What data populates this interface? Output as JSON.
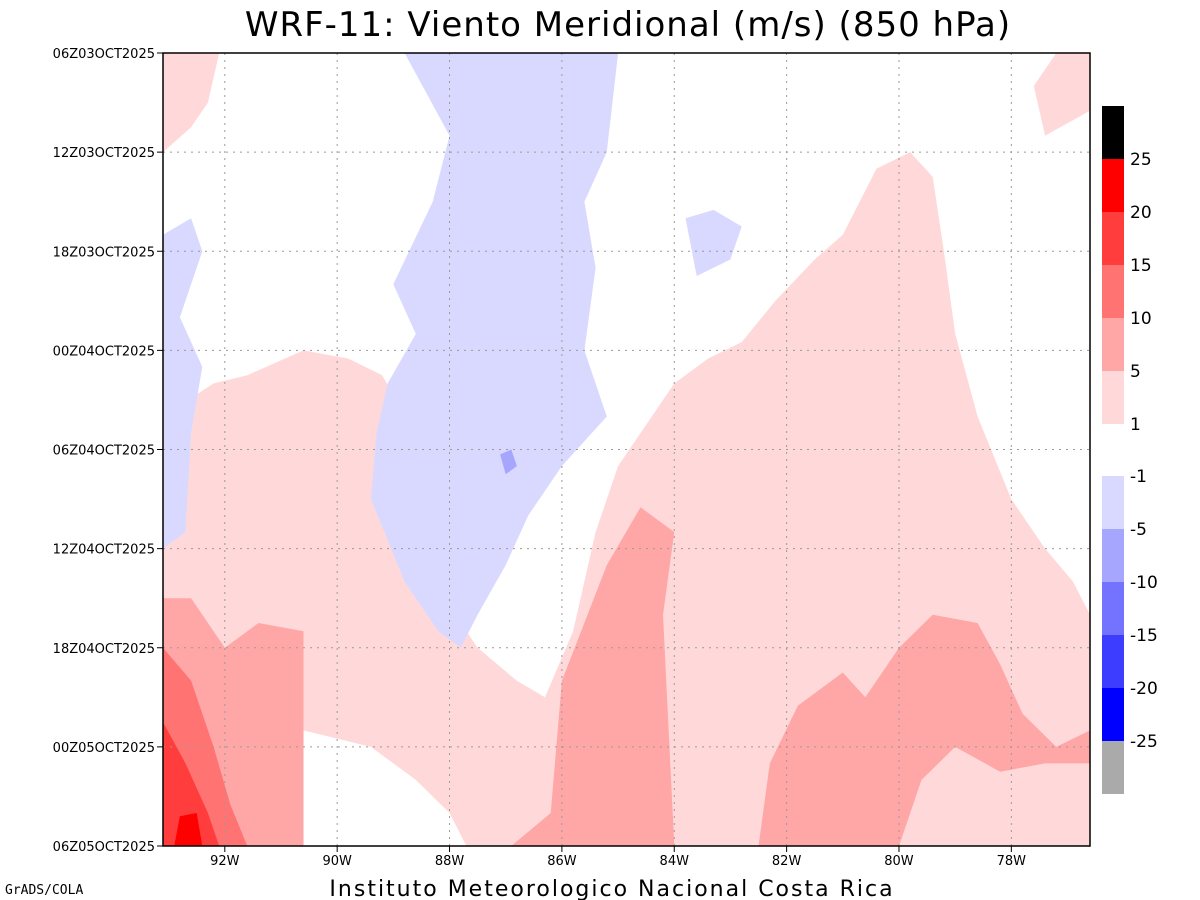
{
  "chart_data": {
    "type": "heatmap",
    "title": "WRF-11: Viento Meridional (m/s) (850 hPa)",
    "xlabel": "",
    "ylabel": "",
    "x_ticks": [
      "92W",
      "90W",
      "88W",
      "86W",
      "84W",
      "82W",
      "80W",
      "78W"
    ],
    "x_tick_values": [
      -92,
      -90,
      -88,
      -86,
      -84,
      -82,
      -80,
      -78
    ],
    "xlim": [
      -93.1,
      -76.6
    ],
    "y_ticks": [
      "06Z03OCT2025",
      "12Z03OCT2025",
      "18Z03OCT2025",
      "00Z04OCT2025",
      "06Z04OCT2025",
      "12Z04OCT2025",
      "18Z04OCT2025",
      "00Z05OCT2025",
      "06Z05OCT2025"
    ],
    "y_tick_hours": [
      0,
      6,
      12,
      18,
      24,
      30,
      36,
      42,
      48
    ],
    "ylim_hours": [
      0,
      48
    ],
    "grid": true,
    "colorbar": {
      "placement": "right",
      "labels": [
        "25",
        "20",
        "15",
        "10",
        "5",
        "1",
        "-1",
        "-5",
        "-10",
        "-15",
        "-20",
        "-25"
      ],
      "positive_colors": [
        "#000000",
        "#ff0000",
        "#ff3d3d",
        "#ff7373",
        "#ffa6a6",
        "#ffd9d9"
      ],
      "negative_colors": [
        "#d9d9ff",
        "#a6a6ff",
        "#7373ff",
        "#3d3dff",
        "#0000ff",
        "#aaaaaa"
      ]
    },
    "regions": [
      {
        "level": "1 to 5",
        "color": "#ffd9d9",
        "polygon": [
          [
            -93.1,
            22
          ],
          [
            -92.2,
            20
          ],
          [
            -91.6,
            19.5
          ],
          [
            -90.6,
            18
          ],
          [
            -89.8,
            18.5
          ],
          [
            -89.2,
            19.5
          ],
          [
            -88.6,
            23
          ],
          [
            -88.3,
            25
          ],
          [
            -88.3,
            32
          ],
          [
            -87.5,
            36
          ],
          [
            -86.8,
            38
          ],
          [
            -86.3,
            39
          ],
          [
            -85.8,
            35
          ],
          [
            -85.4,
            29
          ],
          [
            -85.0,
            25
          ],
          [
            -84.4,
            22
          ],
          [
            -84.0,
            20
          ],
          [
            -83.4,
            18.5
          ],
          [
            -82.8,
            17.5
          ],
          [
            -82.2,
            15
          ],
          [
            -81.5,
            12.5
          ],
          [
            -81.0,
            11
          ],
          [
            -80.4,
            7
          ],
          [
            -79.8,
            6
          ],
          [
            -79.4,
            7.5
          ],
          [
            -79.2,
            12
          ],
          [
            -79.0,
            17
          ],
          [
            -78.6,
            22
          ],
          [
            -78.0,
            27
          ],
          [
            -77.4,
            30
          ],
          [
            -76.9,
            32
          ],
          [
            -76.6,
            34
          ],
          [
            -76.6,
            48
          ],
          [
            -87.7,
            48
          ],
          [
            -88.0,
            46
          ],
          [
            -88.6,
            44
          ],
          [
            -89.4,
            42
          ],
          [
            -90.6,
            41
          ],
          [
            -91.6,
            38
          ],
          [
            -92.4,
            36
          ],
          [
            -93.1,
            35
          ]
        ]
      },
      {
        "level": "1 to 5",
        "color": "#ffd9d9",
        "polygon": [
          [
            -77.2,
            0
          ],
          [
            -76.6,
            0
          ],
          [
            -76.6,
            3.5
          ],
          [
            -77.4,
            5
          ],
          [
            -77.6,
            2
          ]
        ]
      },
      {
        "level": "1 to 5",
        "color": "#ffd9d9",
        "polygon": [
          [
            -93.1,
            0
          ],
          [
            -92.1,
            0
          ],
          [
            -92.3,
            3
          ],
          [
            -92.6,
            4.5
          ],
          [
            -93.1,
            6
          ]
        ]
      },
      {
        "level": "-1 to -5",
        "color": "#d9d9ff",
        "polygon": [
          [
            -88.8,
            0
          ],
          [
            -85.0,
            0
          ],
          [
            -85.2,
            6
          ],
          [
            -85.6,
            9
          ],
          [
            -85.4,
            13
          ],
          [
            -85.6,
            18
          ],
          [
            -85.2,
            22
          ],
          [
            -86.0,
            25
          ],
          [
            -86.6,
            28
          ],
          [
            -87.0,
            31
          ],
          [
            -87.5,
            34
          ],
          [
            -87.8,
            36
          ],
          [
            -88.2,
            35
          ],
          [
            -88.8,
            32
          ],
          [
            -89.4,
            27
          ],
          [
            -89.3,
            23
          ],
          [
            -89.1,
            20
          ],
          [
            -88.6,
            17
          ],
          [
            -89.0,
            14
          ],
          [
            -88.3,
            9
          ],
          [
            -88.0,
            5
          ]
        ]
      },
      {
        "level": "-1 to -5",
        "color": "#d9d9ff",
        "polygon": [
          [
            -93.1,
            11
          ],
          [
            -92.6,
            10
          ],
          [
            -92.4,
            12
          ],
          [
            -92.8,
            16
          ],
          [
            -92.4,
            19
          ],
          [
            -92.6,
            23
          ],
          [
            -92.7,
            29
          ],
          [
            -93.1,
            30
          ]
        ]
      },
      {
        "level": "-1 to -5",
        "color": "#d9d9ff",
        "polygon": [
          [
            -83.8,
            10
          ],
          [
            -83.3,
            9.5
          ],
          [
            -82.8,
            10.5
          ],
          [
            -83.0,
            12.5
          ],
          [
            -83.6,
            13.5
          ]
        ]
      },
      {
        "level": "5 to 10",
        "color": "#ffa6a6",
        "polygon": [
          [
            -93.1,
            33
          ],
          [
            -92.6,
            33
          ],
          [
            -92.0,
            36
          ],
          [
            -91.4,
            34.5
          ],
          [
            -90.6,
            35
          ],
          [
            -90.6,
            48
          ],
          [
            -93.1,
            48
          ]
        ]
      },
      {
        "level": "5 to 10",
        "color": "#ffa6a6",
        "polygon": [
          [
            -86.9,
            48
          ],
          [
            -86.2,
            46
          ],
          [
            -86.0,
            38
          ],
          [
            -85.2,
            31
          ],
          [
            -84.6,
            27.5
          ],
          [
            -84.0,
            29
          ],
          [
            -84.2,
            34
          ],
          [
            -84.0,
            48
          ]
        ]
      },
      {
        "level": "5 to 10",
        "color": "#ffa6a6",
        "polygon": [
          [
            -82.5,
            48
          ],
          [
            -82.3,
            43
          ],
          [
            -81.8,
            39.5
          ],
          [
            -81.0,
            37.5
          ],
          [
            -80.6,
            39
          ],
          [
            -80.0,
            36
          ],
          [
            -79.4,
            34
          ],
          [
            -78.6,
            34.5
          ],
          [
            -78.2,
            37
          ],
          [
            -77.8,
            40
          ],
          [
            -77.2,
            42
          ],
          [
            -76.6,
            41
          ],
          [
            -76.6,
            43
          ],
          [
            -77.4,
            43
          ],
          [
            -78.2,
            43.5
          ],
          [
            -79.0,
            42
          ],
          [
            -79.6,
            44
          ],
          [
            -80.0,
            48
          ]
        ]
      },
      {
        "level": "10 to 15",
        "color": "#ff7373",
        "polygon": [
          [
            -93.1,
            36
          ],
          [
            -92.6,
            38
          ],
          [
            -92.2,
            42
          ],
          [
            -91.9,
            45.5
          ],
          [
            -91.6,
            48
          ],
          [
            -93.1,
            48
          ]
        ]
      },
      {
        "level": "15 to 20",
        "color": "#ff3d3d",
        "polygon": [
          [
            -93.1,
            40.5
          ],
          [
            -92.7,
            43
          ],
          [
            -92.3,
            46
          ],
          [
            -92.1,
            48
          ],
          [
            -93.1,
            48
          ]
        ]
      },
      {
        "level": "20 to 25",
        "color": "#ff0000",
        "polygon": [
          [
            -92.9,
            48
          ],
          [
            -92.8,
            46.2
          ],
          [
            -92.5,
            46
          ],
          [
            -92.4,
            48
          ]
        ]
      },
      {
        "level": "-5 to -10",
        "color": "#a6a6ff",
        "polygon": [
          [
            -87.1,
            24.3
          ],
          [
            -86.9,
            24
          ],
          [
            -86.8,
            25
          ],
          [
            -87.0,
            25.5
          ]
        ]
      }
    ]
  },
  "footer": {
    "left": "GrADS/COLA",
    "center": "Instituto Meteorologico Nacional Costa Rica"
  }
}
